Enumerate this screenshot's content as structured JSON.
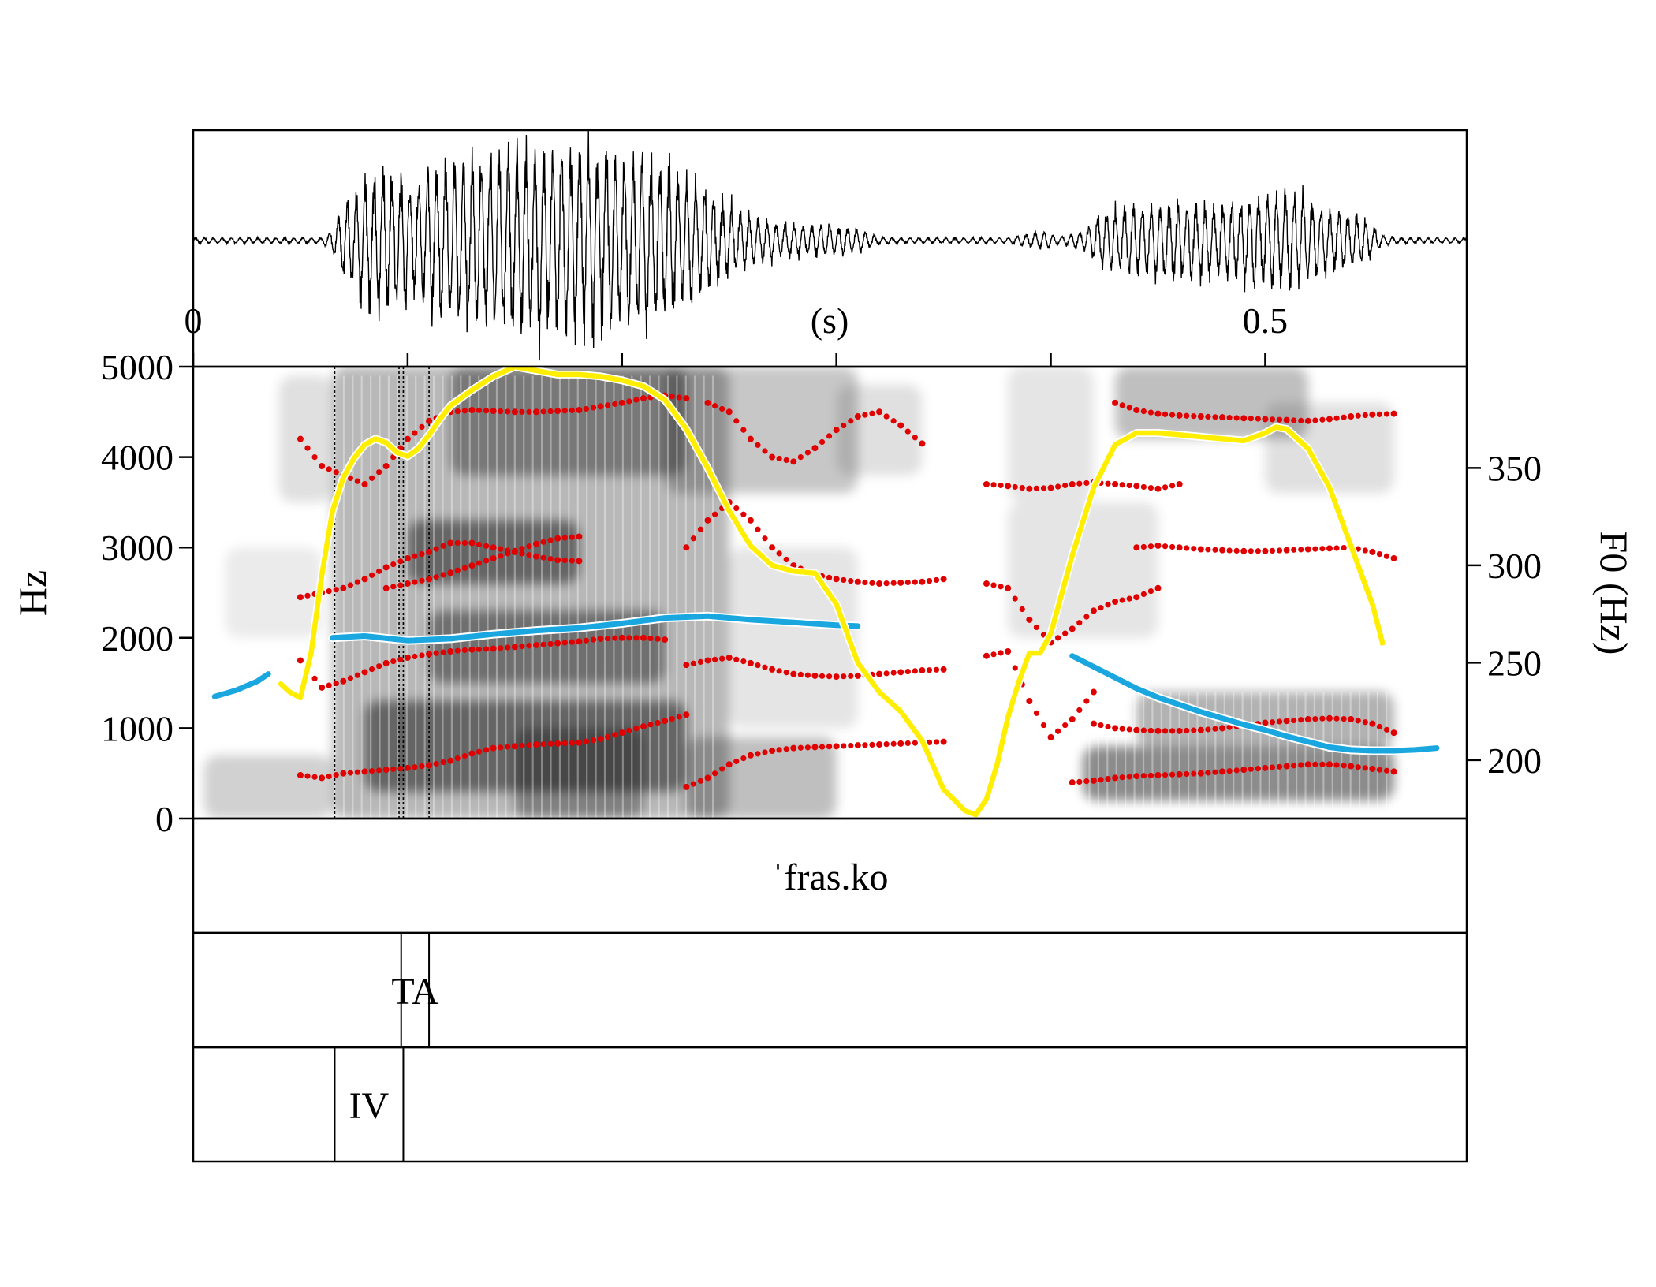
{
  "chart_data": [
    {
      "type": "line",
      "panel": "waveform",
      "time_axis": {
        "unit_label": "(s)",
        "tick_labels": [
          "0",
          "0.5"
        ],
        "tick_values": [
          0,
          0.1,
          0.2,
          0.3,
          0.4,
          0.5
        ],
        "range": [
          0,
          0.594
        ]
      },
      "envelope": {
        "x": [
          0.0,
          0.03,
          0.06,
          0.064,
          0.075,
          0.085,
          0.095,
          0.105,
          0.115,
          0.125,
          0.14,
          0.15,
          0.16,
          0.17,
          0.18,
          0.19,
          0.2,
          0.21,
          0.22,
          0.23,
          0.24,
          0.25,
          0.26,
          0.27,
          0.28,
          0.29,
          0.3,
          0.31,
          0.32,
          0.33,
          0.34,
          0.35,
          0.36,
          0.37,
          0.38,
          0.385,
          0.395,
          0.405,
          0.415,
          0.425,
          0.435,
          0.445,
          0.455,
          0.465,
          0.475,
          0.485,
          0.495,
          0.505,
          0.515,
          0.525,
          0.535,
          0.545,
          0.555,
          0.565,
          0.58,
          0.594
        ],
        "amplitude": [
          0.03,
          0.03,
          0.03,
          0.1,
          0.55,
          0.75,
          0.68,
          0.62,
          0.82,
          0.9,
          0.88,
          0.95,
          1.0,
          1.0,
          1.0,
          0.98,
          0.92,
          0.9,
          0.8,
          0.7,
          0.55,
          0.38,
          0.25,
          0.2,
          0.17,
          0.17,
          0.16,
          0.12,
          0.04,
          0.03,
          0.03,
          0.03,
          0.03,
          0.03,
          0.03,
          0.05,
          0.1,
          0.04,
          0.1,
          0.3,
          0.35,
          0.38,
          0.4,
          0.4,
          0.38,
          0.4,
          0.45,
          0.52,
          0.5,
          0.38,
          0.3,
          0.25,
          0.05,
          0.03,
          0.03,
          0.03
        ]
      }
    },
    {
      "type": "line",
      "panel": "spectrogram",
      "ylabel": "Hz",
      "ylabel_right": "F0 (Hz)",
      "ylim": [
        0,
        5000
      ],
      "y_ticks": [
        "0",
        "1000",
        "2000",
        "3000",
        "4000",
        "5000"
      ],
      "y2lim": [
        170,
        402
      ],
      "y2_ticks": [
        "200",
        "250",
        "300",
        "350"
      ],
      "y2_tick_values": [
        200,
        250,
        300,
        350
      ],
      "series": [
        {
          "role": "f0-contour",
          "color": "#ffee00",
          "x": [
            0.04,
            0.045,
            0.05,
            0.055,
            0.06,
            0.065,
            0.07,
            0.075,
            0.08,
            0.085,
            0.09,
            0.095,
            0.1,
            0.105,
            0.11,
            0.115,
            0.12,
            0.13,
            0.14,
            0.15,
            0.16,
            0.17,
            0.18,
            0.19,
            0.2,
            0.21,
            0.22,
            0.23,
            0.24,
            0.25,
            0.26,
            0.27,
            0.28,
            0.29,
            0.3,
            0.31,
            0.32,
            0.33,
            0.34,
            0.35,
            0.36,
            0.365,
            0.37,
            0.375,
            0.38,
            0.385,
            0.39,
            0.395,
            0.4,
            0.41,
            0.42,
            0.43,
            0.44,
            0.45,
            0.46,
            0.47,
            0.48,
            0.49,
            0.5,
            0.505,
            0.51,
            0.52,
            0.53,
            0.54,
            0.55,
            0.555
          ],
          "y": [
            240,
            235,
            232,
            255,
            295,
            328,
            345,
            355,
            362,
            365,
            363,
            358,
            356,
            360,
            367,
            375,
            382,
            390,
            397,
            402,
            400,
            398,
            398,
            397,
            395,
            392,
            385,
            370,
            350,
            328,
            310,
            300,
            297,
            296,
            280,
            250,
            235,
            225,
            210,
            185,
            174,
            172,
            180,
            198,
            222,
            240,
            255,
            255,
            265,
            305,
            340,
            362,
            368,
            368,
            367,
            366,
            365,
            364,
            368,
            371,
            370,
            360,
            340,
            310,
            280,
            259
          ]
        },
        {
          "role": "secondary-contour",
          "color": "#1aa7e0",
          "segments": [
            {
              "x": [
                0.01,
                0.02,
                0.03,
                0.035
              ],
              "y": [
                1350,
                1420,
                1520,
                1600
              ]
            },
            {
              "x": [
                0.065,
                0.08,
                0.1,
                0.12,
                0.14,
                0.16,
                0.18,
                0.2,
                0.22,
                0.24,
                0.26,
                0.28,
                0.3,
                0.31
              ],
              "y": [
                2000,
                2020,
                1970,
                1990,
                2040,
                2080,
                2110,
                2160,
                2220,
                2240,
                2200,
                2170,
                2140,
                2130
              ]
            },
            {
              "x": [
                0.41,
                0.42,
                0.43,
                0.44,
                0.45,
                0.46,
                0.47,
                0.48,
                0.49,
                0.5,
                0.51,
                0.52,
                0.53,
                0.54,
                0.55,
                0.56,
                0.57,
                0.58
              ],
              "y": [
                1800,
                1680,
                1560,
                1440,
                1340,
                1260,
                1180,
                1110,
                1040,
                980,
                910,
                850,
                790,
                760,
                750,
                750,
                760,
                780
              ]
            }
          ]
        },
        {
          "role": "formants",
          "color": "#e00000",
          "segments": [
            {
              "x": [
                0.05,
                0.06,
                0.07,
                0.08,
                0.09,
                0.1,
                0.11,
                0.12,
                0.13,
                0.14,
                0.15,
                0.16,
                0.17,
                0.18,
                0.19,
                0.2,
                0.21,
                0.22,
                0.23
              ],
              "y": [
                480,
                450,
                500,
                520,
                540,
                560,
                590,
                640,
                720,
                780,
                800,
                820,
                830,
                840,
                880,
                950,
                1020,
                1080,
                1150
              ]
            },
            {
              "x": [
                0.05,
                0.06,
                0.07,
                0.08,
                0.09,
                0.1,
                0.11,
                0.12,
                0.13,
                0.14,
                0.15,
                0.16,
                0.17,
                0.18,
                0.19,
                0.2,
                0.21,
                0.22
              ],
              "y": [
                1750,
                1450,
                1520,
                1620,
                1720,
                1780,
                1820,
                1850,
                1870,
                1880,
                1900,
                1920,
                1940,
                1960,
                1990,
                2000,
                2000,
                1980
              ]
            },
            {
              "x": [
                0.05,
                0.06,
                0.07,
                0.08,
                0.09,
                0.1,
                0.11,
                0.12,
                0.13,
                0.14,
                0.15,
                0.16,
                0.17,
                0.18
              ],
              "y": [
                2450,
                2500,
                2550,
                2650,
                2780,
                2880,
                2950,
                3050,
                3050,
                3000,
                2950,
                2900,
                2860,
                2850
              ]
            },
            {
              "x": [
                0.09,
                0.1,
                0.11,
                0.12,
                0.13,
                0.14,
                0.15,
                0.16,
                0.17,
                0.18
              ],
              "y": [
                2550,
                2600,
                2650,
                2720,
                2800,
                2880,
                2960,
                3040,
                3100,
                3120
              ]
            },
            {
              "x": [
                0.05,
                0.06,
                0.07,
                0.08,
                0.09,
                0.1,
                0.11,
                0.12,
                0.13,
                0.14,
                0.15,
                0.16,
                0.17,
                0.18,
                0.19,
                0.2,
                0.21,
                0.22,
                0.23
              ],
              "y": [
                4200,
                3900,
                3800,
                3700,
                3900,
                4200,
                4400,
                4500,
                4520,
                4510,
                4500,
                4500,
                4510,
                4520,
                4560,
                4600,
                4650,
                4680,
                4650
              ]
            },
            {
              "x": [
                0.23,
                0.24,
                0.25,
                0.26,
                0.27,
                0.28,
                0.29,
                0.3,
                0.31,
                0.32,
                0.33,
                0.34,
                0.35
              ],
              "y": [
                3000,
                3300,
                3500,
                3300,
                3000,
                2800,
                2700,
                2650,
                2620,
                2600,
                2610,
                2620,
                2650
              ]
            },
            {
              "x": [
                0.23,
                0.24,
                0.25,
                0.26,
                0.27,
                0.28,
                0.29,
                0.3,
                0.31,
                0.32,
                0.33,
                0.34,
                0.35
              ],
              "y": [
                350,
                450,
                600,
                700,
                750,
                780,
                790,
                800,
                810,
                820,
                830,
                840,
                850
              ]
            },
            {
              "x": [
                0.23,
                0.24,
                0.25,
                0.26,
                0.27,
                0.28,
                0.29,
                0.3,
                0.31,
                0.32,
                0.33,
                0.34,
                0.35
              ],
              "y": [
                1700,
                1750,
                1780,
                1720,
                1650,
                1600,
                1580,
                1570,
                1580,
                1600,
                1620,
                1640,
                1650
              ]
            },
            {
              "x": [
                0.24,
                0.25,
                0.26,
                0.27,
                0.28,
                0.29,
                0.3,
                0.31,
                0.32,
                0.33,
                0.34
              ],
              "y": [
                4600,
                4500,
                4200,
                4000,
                3950,
                4100,
                4300,
                4450,
                4500,
                4350,
                4150
              ]
            },
            {
              "x": [
                0.37,
                0.38,
                0.39,
                0.4,
                0.41,
                0.42,
                0.43,
                0.44,
                0.45,
                0.46
              ],
              "y": [
                3700,
                3680,
                3650,
                3660,
                3700,
                3720,
                3700,
                3680,
                3650,
                3700
              ]
            },
            {
              "x": [
                0.37,
                0.38,
                0.39,
                0.4,
                0.41,
                0.42,
                0.43,
                0.44,
                0.45
              ],
              "y": [
                2600,
                2550,
                2200,
                1950,
                2100,
                2300,
                2400,
                2450,
                2550
              ]
            },
            {
              "x": [
                0.37,
                0.38,
                0.39,
                0.4,
                0.41,
                0.42
              ],
              "y": [
                1800,
                1850,
                1300,
                900,
                1100,
                1400
              ]
            },
            {
              "x": [
                0.41,
                0.42,
                0.43,
                0.44,
                0.45,
                0.46,
                0.47,
                0.48,
                0.49,
                0.5,
                0.51,
                0.52,
                0.53,
                0.54,
                0.55,
                0.56
              ],
              "y": [
                400,
                420,
                450,
                470,
                480,
                490,
                500,
                520,
                540,
                560,
                580,
                600,
                600,
                580,
                550,
                520
              ]
            },
            {
              "x": [
                0.42,
                0.43,
                0.44,
                0.45,
                0.46,
                0.47,
                0.48,
                0.49,
                0.5,
                0.51,
                0.52,
                0.53,
                0.54,
                0.55,
                0.56
              ],
              "y": [
                1050,
                1000,
                980,
                970,
                970,
                980,
                1000,
                1030,
                1060,
                1080,
                1100,
                1110,
                1100,
                1050,
                950
              ]
            },
            {
              "x": [
                0.44,
                0.45,
                0.46,
                0.47,
                0.48,
                0.49,
                0.5,
                0.51,
                0.52,
                0.53,
                0.54,
                0.55,
                0.56
              ],
              "y": [
                3000,
                3020,
                3000,
                2980,
                2970,
                2960,
                2960,
                2970,
                2980,
                2990,
                3000,
                2950,
                2880
              ]
            },
            {
              "x": [
                0.43,
                0.44,
                0.45,
                0.46,
                0.47,
                0.48,
                0.49,
                0.5,
                0.51,
                0.52,
                0.53,
                0.54,
                0.55,
                0.56
              ],
              "y": [
                4600,
                4520,
                4480,
                4460,
                4450,
                4440,
                4430,
                4420,
                4410,
                4400,
                4420,
                4450,
                4470,
                4480
              ]
            }
          ]
        }
      ],
      "boundaries_x": [
        0.066,
        0.096,
        0.098,
        0.11
      ]
    }
  ],
  "tiers": [
    {
      "label": "ˈfras.ko",
      "start": 0.0,
      "end": 0.594,
      "boundaries": []
    },
    {
      "label": "TA",
      "start": 0.097,
      "end": 0.11,
      "boundaries": [
        0.097,
        0.11
      ]
    },
    {
      "label": "IV",
      "start": 0.066,
      "end": 0.098,
      "boundaries": [
        0.066,
        0.098
      ]
    }
  ]
}
